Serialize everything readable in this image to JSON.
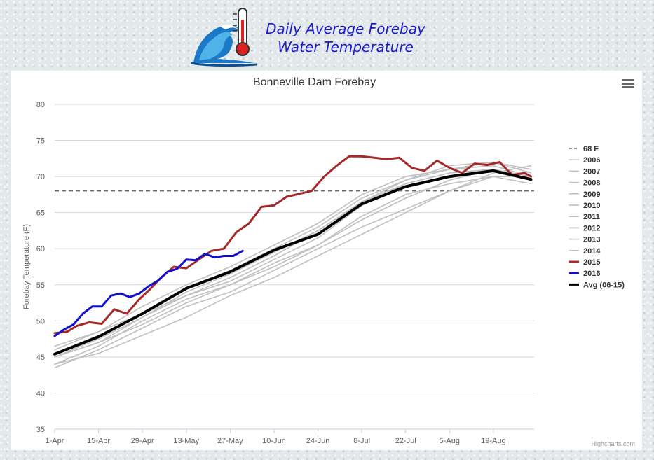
{
  "banner": {
    "title_line1": "Daily Average Forebay",
    "title_line2": "Water Temperature"
  },
  "menu": {
    "icon": "hamburger-menu-icon"
  },
  "credits": "Highcharts.com",
  "colors": {
    "avg": "#000000",
    "y2015": "#a52a2a",
    "y2016": "#1010cc",
    "historic": "#c0c0c0",
    "ref": "#555555"
  },
  "chart_data": {
    "type": "line",
    "title": "Bonneville Dam Forebay",
    "xlabel": "",
    "ylabel": "Forebay Temperature (F)",
    "ylim": [
      35,
      80
    ],
    "yticks": [
      35,
      40,
      45,
      50,
      55,
      60,
      65,
      70,
      75,
      80
    ],
    "xrange": [
      "1-Apr",
      "Sep-1"
    ],
    "xticks": [
      "1-Apr",
      "15-Apr",
      "29-Apr",
      "13-May",
      "27-May",
      "10-Jun",
      "24-Jun",
      "8-Jul",
      "22-Jul",
      "5-Aug",
      "19-Aug"
    ],
    "grid": true,
    "legend_position": "right",
    "reference_line": {
      "name": "68 F",
      "value": 68
    },
    "series": [
      {
        "name": "2006",
        "x": [
          "1-Apr",
          "15-Apr",
          "29-Apr",
          "13-May",
          "27-May",
          "10-Jun",
          "24-Jun",
          "8-Jul",
          "22-Jul",
          "5-Aug",
          "19-Aug",
          "31-Aug"
        ],
        "values": [
          45.0,
          47.5,
          50.5,
          53.5,
          55.5,
          58.5,
          61.5,
          66.0,
          69.0,
          70.5,
          71.0,
          70.0
        ]
      },
      {
        "name": "2007",
        "x": [
          "1-Apr",
          "15-Apr",
          "29-Apr",
          "13-May",
          "27-May",
          "10-Jun",
          "24-Jun",
          "8-Jul",
          "22-Jul",
          "5-Aug",
          "19-Aug",
          "31-Aug"
        ],
        "values": [
          44.0,
          46.5,
          50.0,
          53.0,
          55.0,
          58.0,
          60.5,
          64.5,
          67.5,
          69.0,
          70.0,
          69.0
        ]
      },
      {
        "name": "2008",
        "x": [
          "1-Apr",
          "15-Apr",
          "29-Apr",
          "13-May",
          "27-May",
          "10-Jun",
          "24-Jun",
          "8-Jul",
          "22-Jul",
          "5-Aug",
          "19-Aug",
          "31-Aug"
        ],
        "values": [
          43.5,
          46.0,
          49.0,
          52.0,
          54.0,
          57.0,
          60.0,
          63.0,
          65.5,
          68.0,
          70.0,
          70.0
        ]
      },
      {
        "name": "2009",
        "x": [
          "1-Apr",
          "15-Apr",
          "29-Apr",
          "13-May",
          "27-May",
          "10-Jun",
          "24-Jun",
          "8-Jul",
          "22-Jul",
          "5-Aug",
          "19-Aug",
          "31-Aug"
        ],
        "values": [
          45.5,
          48.0,
          51.0,
          54.5,
          57.0,
          60.0,
          63.0,
          67.0,
          69.5,
          71.0,
          72.0,
          70.5
        ]
      },
      {
        "name": "2010",
        "x": [
          "1-Apr",
          "15-Apr",
          "29-Apr",
          "13-May",
          "27-May",
          "10-Jun",
          "24-Jun",
          "8-Jul",
          "22-Jul",
          "5-Aug",
          "19-Aug",
          "31-Aug"
        ],
        "values": [
          46.0,
          48.5,
          51.0,
          53.5,
          56.0,
          59.0,
          62.5,
          66.5,
          69.0,
          70.5,
          71.0,
          69.5
        ]
      },
      {
        "name": "2011",
        "x": [
          "1-Apr",
          "15-Apr",
          "29-Apr",
          "13-May",
          "27-May",
          "10-Jun",
          "24-Jun",
          "8-Jul",
          "22-Jul",
          "5-Aug",
          "19-Aug",
          "31-Aug"
        ],
        "values": [
          44.0,
          45.5,
          48.0,
          50.5,
          53.5,
          56.0,
          59.0,
          62.0,
          65.0,
          68.0,
          70.5,
          71.5
        ]
      },
      {
        "name": "2012",
        "x": [
          "1-Apr",
          "15-Apr",
          "29-Apr",
          "13-May",
          "27-May",
          "10-Jun",
          "24-Jun",
          "8-Jul",
          "22-Jul",
          "5-Aug",
          "19-Aug",
          "31-Aug"
        ],
        "values": [
          45.0,
          47.0,
          49.5,
          52.5,
          55.0,
          57.5,
          60.5,
          64.0,
          67.0,
          69.5,
          71.0,
          70.0
        ]
      },
      {
        "name": "2013",
        "x": [
          "1-Apr",
          "15-Apr",
          "29-Apr",
          "13-May",
          "27-May",
          "10-Jun",
          "24-Jun",
          "8-Jul",
          "22-Jul",
          "5-Aug",
          "19-Aug",
          "31-Aug"
        ],
        "values": [
          46.5,
          48.5,
          52.0,
          55.0,
          57.5,
          60.5,
          63.5,
          67.5,
          70.0,
          71.0,
          71.5,
          70.0
        ]
      },
      {
        "name": "2014",
        "x": [
          "1-Apr",
          "15-Apr",
          "29-Apr",
          "13-May",
          "27-May",
          "10-Jun",
          "24-Jun",
          "8-Jul",
          "22-Jul",
          "5-Aug",
          "19-Aug",
          "31-Aug"
        ],
        "values": [
          45.0,
          47.0,
          50.5,
          54.0,
          56.5,
          59.5,
          62.5,
          66.5,
          69.5,
          71.5,
          72.0,
          71.0
        ]
      },
      {
        "name": "2015",
        "x": [
          "1-Apr",
          "5-Apr",
          "8-Apr",
          "12-Apr",
          "16-Apr",
          "20-Apr",
          "24-Apr",
          "28-Apr",
          "1-May",
          "5-May",
          "9-May",
          "13-May",
          "17-May",
          "21-May",
          "25-May",
          "29-May",
          "2-Jun",
          "6-Jun",
          "10-Jun",
          "14-Jun",
          "18-Jun",
          "22-Jun",
          "26-Jun",
          "30-Jun",
          "4-Jul",
          "8-Jul",
          "12-Jul",
          "16-Jul",
          "20-Jul",
          "24-Jul",
          "28-Jul",
          "1-Aug",
          "5-Aug",
          "9-Aug",
          "13-Aug",
          "17-Aug",
          "21-Aug",
          "25-Aug",
          "29-Aug",
          "31-Aug"
        ],
        "values": [
          48.3,
          48.5,
          49.3,
          49.8,
          49.6,
          51.6,
          51.0,
          53.0,
          54.2,
          56.0,
          57.5,
          57.3,
          58.5,
          59.7,
          60.0,
          62.3,
          63.5,
          65.8,
          66.0,
          67.2,
          67.6,
          68.0,
          70.0,
          71.5,
          72.8,
          72.8,
          72.6,
          72.4,
          72.6,
          71.2,
          70.8,
          72.2,
          71.2,
          70.5,
          71.8,
          71.6,
          72.0,
          70.2,
          70.5,
          70.0
        ]
      },
      {
        "name": "2016",
        "x": [
          "1-Apr",
          "4-Apr",
          "7-Apr",
          "10-Apr",
          "13-Apr",
          "16-Apr",
          "19-Apr",
          "22-Apr",
          "25-Apr",
          "28-Apr",
          "1-May",
          "4-May",
          "7-May",
          "10-May",
          "13-May",
          "16-May",
          "19-May",
          "22-May",
          "25-May",
          "28-May",
          "31-May"
        ],
        "values": [
          47.9,
          48.8,
          49.5,
          51.0,
          52.0,
          52.0,
          53.5,
          53.8,
          53.3,
          53.8,
          54.8,
          55.6,
          56.8,
          57.2,
          58.5,
          58.4,
          59.3,
          58.8,
          59.0,
          59.0,
          59.7
        ]
      },
      {
        "name": "Avg (06-15)",
        "x": [
          "1-Apr",
          "15-Apr",
          "29-Apr",
          "13-May",
          "27-May",
          "10-Jun",
          "24-Jun",
          "8-Jul",
          "22-Jul",
          "5-Aug",
          "19-Aug",
          "31-Aug"
        ],
        "values": [
          45.4,
          47.8,
          51.0,
          54.5,
          56.8,
          59.8,
          62.0,
          66.2,
          68.6,
          70.0,
          70.8,
          69.6
        ]
      }
    ]
  }
}
